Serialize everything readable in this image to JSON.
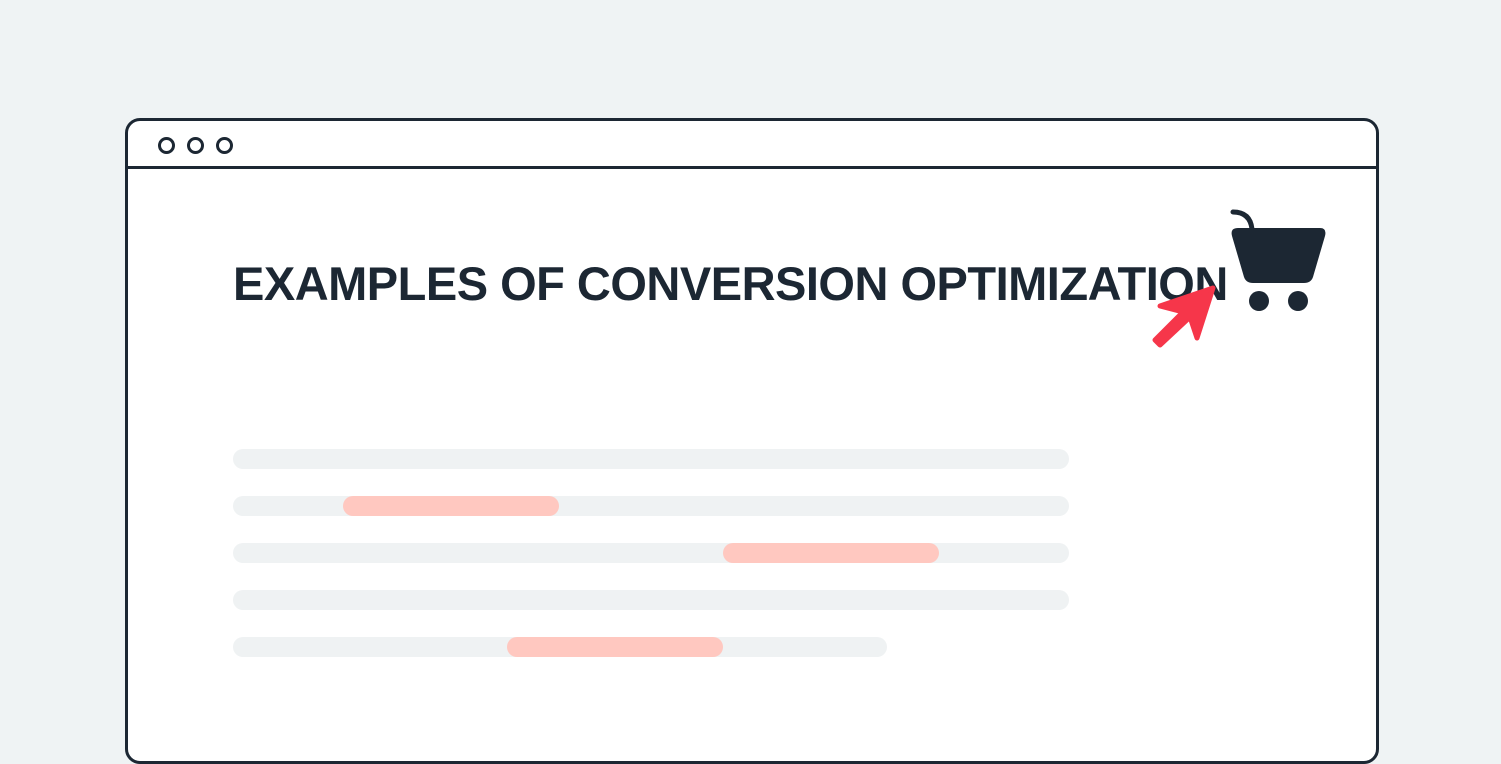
{
  "page": {
    "title": "EXAMPLES OF CONVERSION OPTIMIZATION"
  },
  "icons": [
    "window-dot",
    "shopping-cart-icon",
    "cursor-arrow-icon"
  ],
  "colors": {
    "background": "#eff3f4",
    "ink": "#1c2733",
    "placeholder_line": "#eff2f3",
    "highlight": "#ffc8c0",
    "arrow": "#f6364a"
  }
}
